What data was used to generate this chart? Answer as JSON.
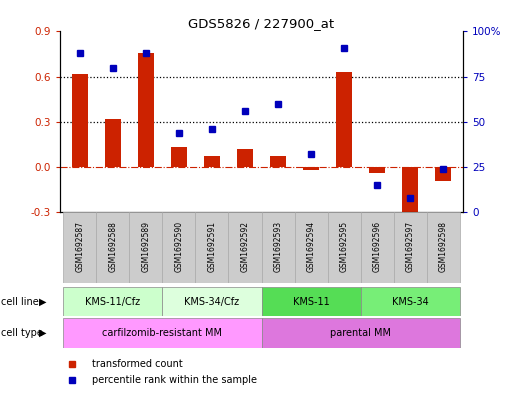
{
  "title": "GDS5826 / 227900_at",
  "samples": [
    "GSM1692587",
    "GSM1692588",
    "GSM1692589",
    "GSM1692590",
    "GSM1692591",
    "GSM1692592",
    "GSM1692593",
    "GSM1692594",
    "GSM1692595",
    "GSM1692596",
    "GSM1692597",
    "GSM1692598"
  ],
  "transformed_count": [
    0.62,
    0.32,
    0.76,
    0.13,
    0.07,
    0.12,
    0.07,
    -0.02,
    0.63,
    -0.04,
    -0.34,
    -0.09
  ],
  "percentile_rank": [
    88,
    80,
    88,
    44,
    46,
    56,
    60,
    32,
    91,
    15,
    8,
    24
  ],
  "cell_line_groups": [
    {
      "label": "KMS-11/Cfz",
      "start": 0,
      "end": 3,
      "color": "#ccffcc"
    },
    {
      "label": "KMS-34/Cfz",
      "start": 3,
      "end": 6,
      "color": "#ddffdd"
    },
    {
      "label": "KMS-11",
      "start": 6,
      "end": 9,
      "color": "#55dd55"
    },
    {
      "label": "KMS-34",
      "start": 9,
      "end": 12,
      "color": "#77ee77"
    }
  ],
  "cell_type_groups": [
    {
      "label": "carfilzomib-resistant MM",
      "start": 0,
      "end": 6,
      "color": "#ff99ff"
    },
    {
      "label": "parental MM",
      "start": 6,
      "end": 12,
      "color": "#dd77dd"
    }
  ],
  "bar_color": "#cc2200",
  "dot_color": "#0000bb",
  "left_ylim": [
    -0.3,
    0.9
  ],
  "right_ylim": [
    0,
    100
  ],
  "left_yticks": [
    -0.3,
    0.0,
    0.3,
    0.6,
    0.9
  ],
  "right_yticks": [
    0,
    25,
    50,
    75,
    100
  ],
  "right_yticklabels": [
    "0",
    "25",
    "50",
    "75",
    "100%"
  ],
  "dotted_lines": [
    0.3,
    0.6
  ],
  "legend_items": [
    {
      "color": "#cc2200",
      "label": "transformed count"
    },
    {
      "color": "#0000bb",
      "label": "percentile rank within the sample"
    }
  ],
  "sample_box_color": "#cccccc",
  "cell_line_row_label": "cell line",
  "cell_type_row_label": "cell type",
  "bar_width": 0.5
}
